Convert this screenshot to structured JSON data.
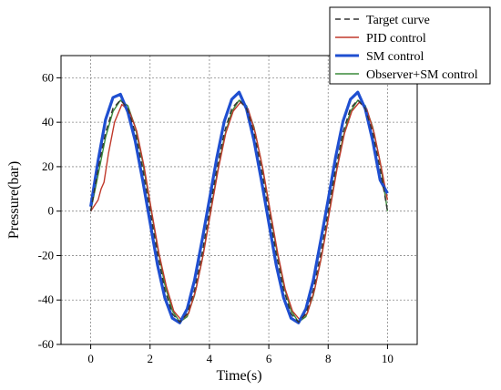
{
  "chart_data": {
    "type": "line",
    "xlabel": "Time(s)",
    "ylabel": "Pressure(bar)",
    "xlim": [
      -1,
      11
    ],
    "ylim": [
      -60,
      70
    ],
    "xticks": [
      0,
      2,
      4,
      6,
      8,
      10
    ],
    "yticks": [
      -60,
      -40,
      -20,
      0,
      20,
      40,
      60
    ],
    "xtick_labels": [
      "0",
      "2",
      "4",
      "6",
      "8",
      "10"
    ],
    "ytick_labels": [
      "-60",
      "-40",
      "-20",
      "0",
      "20",
      "40",
      "60"
    ],
    "grid": true,
    "legend_position": "top-right (outside plot)",
    "series": [
      {
        "name": "Target curve",
        "color": "#333333",
        "style": "dashed",
        "x": [
          0,
          0.25,
          0.5,
          0.75,
          1,
          1.25,
          1.5,
          1.75,
          2,
          2.25,
          2.5,
          2.75,
          3,
          3.25,
          3.5,
          3.75,
          4,
          4.25,
          4.5,
          4.75,
          5,
          5.25,
          5.5,
          5.75,
          6,
          6.25,
          6.5,
          6.75,
          7,
          7.25,
          7.5,
          7.75,
          8,
          8.25,
          8.5,
          8.75,
          9,
          9.25,
          9.5,
          9.75,
          10
        ],
        "y": [
          0,
          19.1,
          35.4,
          46.2,
          50,
          46.2,
          35.4,
          19.1,
          0,
          -19.1,
          -35.4,
          -46.2,
          -50,
          -46.2,
          -35.4,
          -19.1,
          0,
          19.1,
          35.4,
          46.2,
          50,
          46.2,
          35.4,
          19.1,
          0,
          -19.1,
          -35.4,
          -46.2,
          -50,
          -46.2,
          -35.4,
          -19.1,
          0,
          19.1,
          35.4,
          46.2,
          50,
          46.2,
          35.4,
          19.1,
          0
        ]
      },
      {
        "name": "PID control",
        "color": "#c0392b",
        "style": "solid",
        "x": [
          0,
          0.25,
          0.35,
          0.45,
          0.6,
          0.8,
          1.05,
          1.3,
          1.55,
          1.8,
          2.05,
          2.3,
          2.55,
          2.8,
          3.05,
          3.3,
          3.55,
          3.8,
          4.05,
          4.3,
          4.55,
          4.8,
          5.05,
          5.3,
          5.55,
          5.8,
          6.05,
          6.3,
          6.55,
          6.8,
          7.05,
          7.3,
          7.55,
          7.8,
          8.05,
          8.3,
          8.55,
          8.8,
          9.05,
          9.3,
          9.55,
          9.8,
          10
        ],
        "y": [
          0,
          5,
          10,
          13,
          26,
          40,
          48,
          45,
          36,
          20,
          0,
          -19,
          -34,
          -45,
          -49,
          -46,
          -35,
          -19,
          0,
          19,
          35,
          45,
          49,
          46,
          35,
          19,
          0,
          -19,
          -35,
          -45,
          -49,
          -46,
          -35,
          -19,
          0,
          19,
          35,
          45,
          49,
          46,
          35,
          19,
          5
        ]
      },
      {
        "name": "SM control",
        "color": "#1f4fd1",
        "style": "solid",
        "x": [
          0,
          0.25,
          0.5,
          0.75,
          1,
          1.25,
          1.5,
          1.75,
          2,
          2.25,
          2.5,
          2.75,
          3,
          3.25,
          3.5,
          3.75,
          4,
          4.25,
          4.5,
          4.75,
          5,
          5.25,
          5.5,
          5.75,
          6,
          6.25,
          6.5,
          6.75,
          7,
          7.25,
          7.5,
          7.75,
          8,
          8.25,
          8.5,
          8.75,
          9,
          9.25,
          9.5,
          9.75,
          10
        ],
        "y": [
          2,
          22.7,
          41.2,
          51.1,
          52.6,
          44.7,
          31.5,
          14.0,
          -5.2,
          -24.2,
          -39.1,
          -48.2,
          -50.3,
          -44.0,
          -31.0,
          -13.3,
          5.2,
          24.2,
          40.4,
          50.3,
          53.5,
          46.0,
          31.8,
          14.0,
          -5.2,
          -24.2,
          -39.1,
          -48.2,
          -50.3,
          -44.0,
          -31.0,
          -13.3,
          5.2,
          24.2,
          40.4,
          50.3,
          53.5,
          46.0,
          31.8,
          14.0,
          8
        ]
      },
      {
        "name": "Observer+SM control",
        "color": "#3a8a3a",
        "style": "solid",
        "x": [
          0,
          0.25,
          0.5,
          0.75,
          1,
          1.25,
          1.5,
          1.75,
          2,
          2.25,
          2.5,
          2.75,
          3,
          3.25,
          3.5,
          3.75,
          4,
          4.25,
          4.5,
          4.75,
          5,
          5.25,
          5.5,
          5.75,
          6,
          6.25,
          6.5,
          6.75,
          7,
          7.25,
          7.5,
          7.75,
          8,
          8.25,
          8.5,
          8.75,
          9,
          9.25,
          9.5,
          9.75,
          10
        ],
        "y": [
          0,
          16.3,
          33.2,
          44.8,
          49.9,
          47.5,
          37.9,
          22.2,
          3.1,
          -16.3,
          -33.2,
          -44.8,
          -49.9,
          -47.5,
          -37.9,
          -22.2,
          -3.1,
          16.3,
          33.2,
          44.8,
          49.9,
          47.5,
          37.9,
          22.2,
          3.1,
          -16.3,
          -33.2,
          -44.8,
          -49.9,
          -47.5,
          -37.9,
          -22.2,
          -3.1,
          16.3,
          33.2,
          44.8,
          49.9,
          47.5,
          37.9,
          22.2,
          0
        ]
      }
    ]
  }
}
